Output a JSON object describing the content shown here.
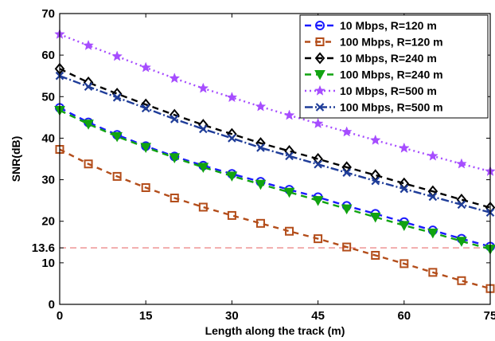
{
  "chart_data": {
    "type": "line",
    "xlabel": "Length along the track (m)",
    "ylabel": "SNR(dB)",
    "xlim": [
      0,
      75
    ],
    "ylim": [
      0,
      70
    ],
    "xticks": [
      0,
      15,
      30,
      45,
      60,
      75
    ],
    "yticks": [
      0,
      10,
      20,
      30,
      40,
      50,
      60,
      70
    ],
    "extra_ytick": "13.6",
    "reference_line": {
      "y": 13.6,
      "color": "#e87070",
      "style": "dashed"
    },
    "grid": false,
    "legend_position": "top-right",
    "x": [
      0,
      5,
      10,
      15,
      20,
      25,
      30,
      35,
      40,
      45,
      50,
      55,
      60,
      65,
      70,
      75
    ],
    "series": [
      {
        "name": "10 Mbps, R=120 m",
        "color": "#1a1aff",
        "marker": "circle",
        "values": [
          47.3,
          43.8,
          40.8,
          38.1,
          35.6,
          33.4,
          31.4,
          29.5,
          27.6,
          25.8,
          23.7,
          21.8,
          19.8,
          17.8,
          15.8,
          13.9
        ]
      },
      {
        "name": "100 Mbps, R=120 m",
        "color": "#b34d1a",
        "marker": "square",
        "values": [
          37.3,
          33.8,
          30.8,
          28.1,
          25.6,
          23.4,
          21.4,
          19.5,
          17.6,
          15.8,
          13.8,
          11.8,
          9.8,
          7.7,
          5.7,
          3.8
        ]
      },
      {
        "name": "10 Mbps, R=240 m",
        "color": "#000000",
        "marker": "diamond",
        "values": [
          56.7,
          53.4,
          50.7,
          48.1,
          45.6,
          43.2,
          41.0,
          38.8,
          36.9,
          35.0,
          33.0,
          31.1,
          29.1,
          27.2,
          25.2,
          23.3
        ]
      },
      {
        "name": "100 Mbps, R=240 m",
        "color": "#11a311",
        "marker": "triangle-down",
        "values": [
          46.7,
          43.4,
          40.4,
          37.8,
          35.3,
          33.0,
          30.9,
          28.9,
          27.0,
          25.0,
          23.0,
          21.0,
          19.0,
          17.2,
          15.2,
          13.3
        ]
      },
      {
        "name": "10 Mbps, R=500 m",
        "color": "#a64dff",
        "marker": "star",
        "values": [
          65.0,
          62.3,
          59.7,
          57.0,
          54.4,
          52.0,
          49.8,
          47.6,
          45.5,
          43.5,
          41.5,
          39.5,
          37.6,
          35.7,
          33.8,
          32.0
        ]
      },
      {
        "name": "100 Mbps, R=500 m",
        "color": "#1f3d99",
        "marker": "x",
        "values": [
          55.0,
          52.4,
          49.8,
          47.2,
          44.6,
          42.2,
          40.0,
          37.7,
          35.7,
          33.7,
          31.7,
          29.7,
          27.8,
          25.9,
          24.0,
          22.1
        ]
      }
    ]
  }
}
